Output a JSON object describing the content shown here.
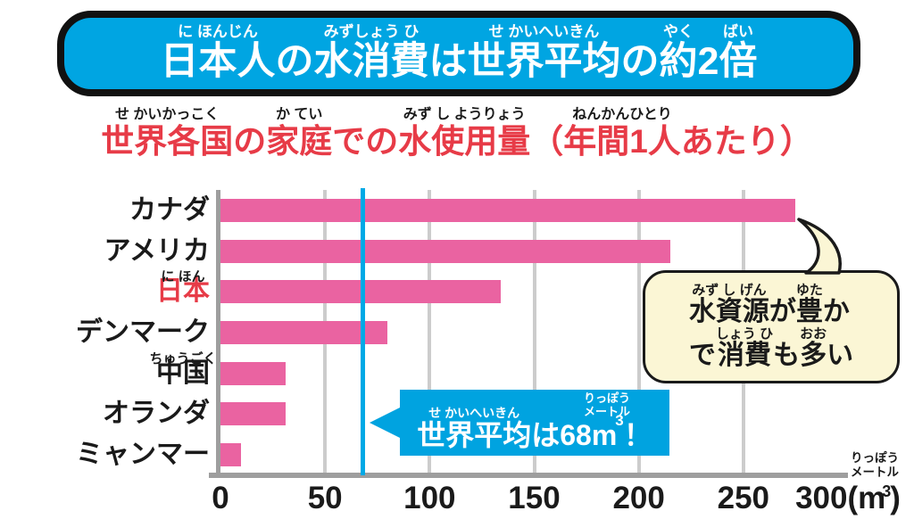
{
  "colors": {
    "banner_blue": "#00a5e2",
    "accent_red": "#e73b47",
    "bar_pink": "#ea63a1",
    "grid_gray": "#cccccc",
    "axis_gray": "#9e9e9e",
    "average_blue": "#00a9e6",
    "callout_blue": "#00a3e0",
    "bubble_cream": "#fbf6d5"
  },
  "banner": {
    "segments": [
      {
        "t": "日本人",
        "r": "に ほんじん"
      },
      {
        "t": "の",
        "r": ""
      },
      {
        "t": "水消費",
        "r": "みずしょう ひ"
      },
      {
        "t": "は",
        "r": ""
      },
      {
        "t": "世界平均",
        "r": "せ かいへいきん"
      },
      {
        "t": "の",
        "r": ""
      },
      {
        "t": "約",
        "r": "やく"
      },
      {
        "t": "2",
        "r": ""
      },
      {
        "t": "倍",
        "r": "ばい"
      }
    ]
  },
  "subtitle": {
    "segments": [
      {
        "t": "世界各国",
        "r": "せ かいかっこく"
      },
      {
        "t": "の",
        "r": ""
      },
      {
        "t": "家庭",
        "r": "か てい"
      },
      {
        "t": "での",
        "r": ""
      },
      {
        "t": "水使用量",
        "r": "みず し ようりょう"
      },
      {
        "t": "（",
        "r": ""
      },
      {
        "t": "年間1人",
        "r": "ねんかんひとり"
      },
      {
        "t": "あたり）",
        "r": ""
      }
    ]
  },
  "chart_data": {
    "type": "bar",
    "orientation": "horizontal",
    "title": "世界各国の家庭での水使用量（年間1人あたり）",
    "categories": [
      "カナダ",
      "アメリカ",
      "日本",
      "デンマーク",
      "中国",
      "オランダ",
      "ミャンマー"
    ],
    "values": [
      275,
      215,
      134,
      80,
      31,
      31,
      10
    ],
    "xlim": [
      0,
      300
    ],
    "xticks": [
      0,
      50,
      100,
      150,
      200,
      250,
      300
    ],
    "x_unit_parts": {
      "pre": "(m",
      "sup": "3",
      "post": ")"
    },
    "axis_note_lines": [
      "りっぽう",
      "メートル"
    ],
    "furigana": {
      "日本": "に ほん",
      "中国": "ちゅうごく"
    },
    "label_colors": {
      "日本": "#e73b47"
    },
    "grid": true,
    "average_line": {
      "value": 68,
      "label": "世界平均は68m³！"
    },
    "annotations": [
      {
        "text": "水資源が豊かで消費も多い",
        "target": "カナダ"
      },
      {
        "text": "世界平均は68m³！",
        "target": "average-line"
      }
    ]
  },
  "bubble": {
    "lines": [
      [
        {
          "t": "水資源",
          "r": "みず し げん"
        },
        {
          "t": "が",
          "r": ""
        },
        {
          "t": "豊",
          "r": "ゆた"
        },
        {
          "t": "か",
          "r": ""
        }
      ],
      [
        {
          "t": "で",
          "r": ""
        },
        {
          "t": "消費",
          "r": "しょう ひ"
        },
        {
          "t": "も",
          "r": ""
        },
        {
          "t": "多",
          "r": "おお"
        },
        {
          "t": "い",
          "r": ""
        }
      ]
    ]
  },
  "callout": {
    "segments": [
      {
        "t": "世界平均",
        "r": "せ かいへいきん"
      },
      {
        "t": "は68m",
        "r": ""
      }
    ],
    "sup": "3",
    "after": "！",
    "note_lines": [
      "りっぽう",
      "メートル"
    ]
  }
}
